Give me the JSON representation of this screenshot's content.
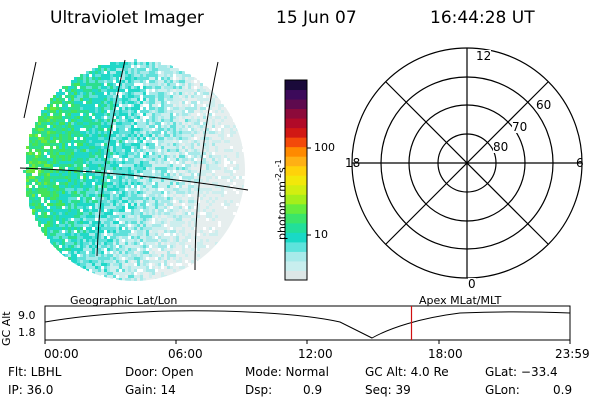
{
  "header": {
    "title": "Ultraviolet Imager",
    "date": "15 Jun 07",
    "time": "16:44:28 UT"
  },
  "colorbar": {
    "label": "photon cm",
    "label_exp1": "-2",
    "label_mid": "s",
    "label_exp2": "-1",
    "ticks": [
      {
        "label": "100",
        "value": 100
      },
      {
        "label": "10",
        "value": 10
      }
    ],
    "colors": [
      "#dce6e6",
      "#c8eeee",
      "#a8eaea",
      "#5de3dc",
      "#19d9c6",
      "#22df9a",
      "#3ae56a",
      "#66ec3c",
      "#a5ee1a",
      "#d2ee10",
      "#f2e80a",
      "#ffd20a",
      "#ffb014",
      "#ff8a00",
      "#f34a0a",
      "#d11814",
      "#b10a28",
      "#8c0a3a",
      "#5e0a4e",
      "#3c0a5a",
      "#1a0a3a"
    ]
  },
  "polar": {
    "hour_labels": [
      {
        "label": "12",
        "pos": "top"
      },
      {
        "label": "18",
        "pos": "left"
      },
      {
        "label": "6",
        "pos": "right"
      },
      {
        "label": "0",
        "pos": "bottom"
      }
    ],
    "lat_labels": [
      "60",
      "70",
      "80"
    ]
  },
  "altitude_plot": {
    "left_label": "Geographic Lat/Lon",
    "right_label": "Apex MLat/MLT",
    "axis_label": "GC Alt",
    "y_ticks": [
      "9.0",
      "1.8"
    ],
    "x_ticks": [
      "00:00",
      "06:00",
      "12:00",
      "18:00",
      "23:59"
    ],
    "marker_time": "16:44:28",
    "marker_color": "#d01010"
  },
  "status": {
    "filter": "Flt: LBHL",
    "door": "Door: Open",
    "mode": "Mode: Normal",
    "gc_alt": "GC Alt: 4.0 Re",
    "glat": "GLat: −33.4",
    "ip": "IP: 36.0",
    "gain": "Gain: 14",
    "dsp_label": "Dsp:",
    "dsp_value": "0.9",
    "seq": "Seq: 39",
    "glon_label": "GLon:",
    "glon_value": "0.9"
  }
}
